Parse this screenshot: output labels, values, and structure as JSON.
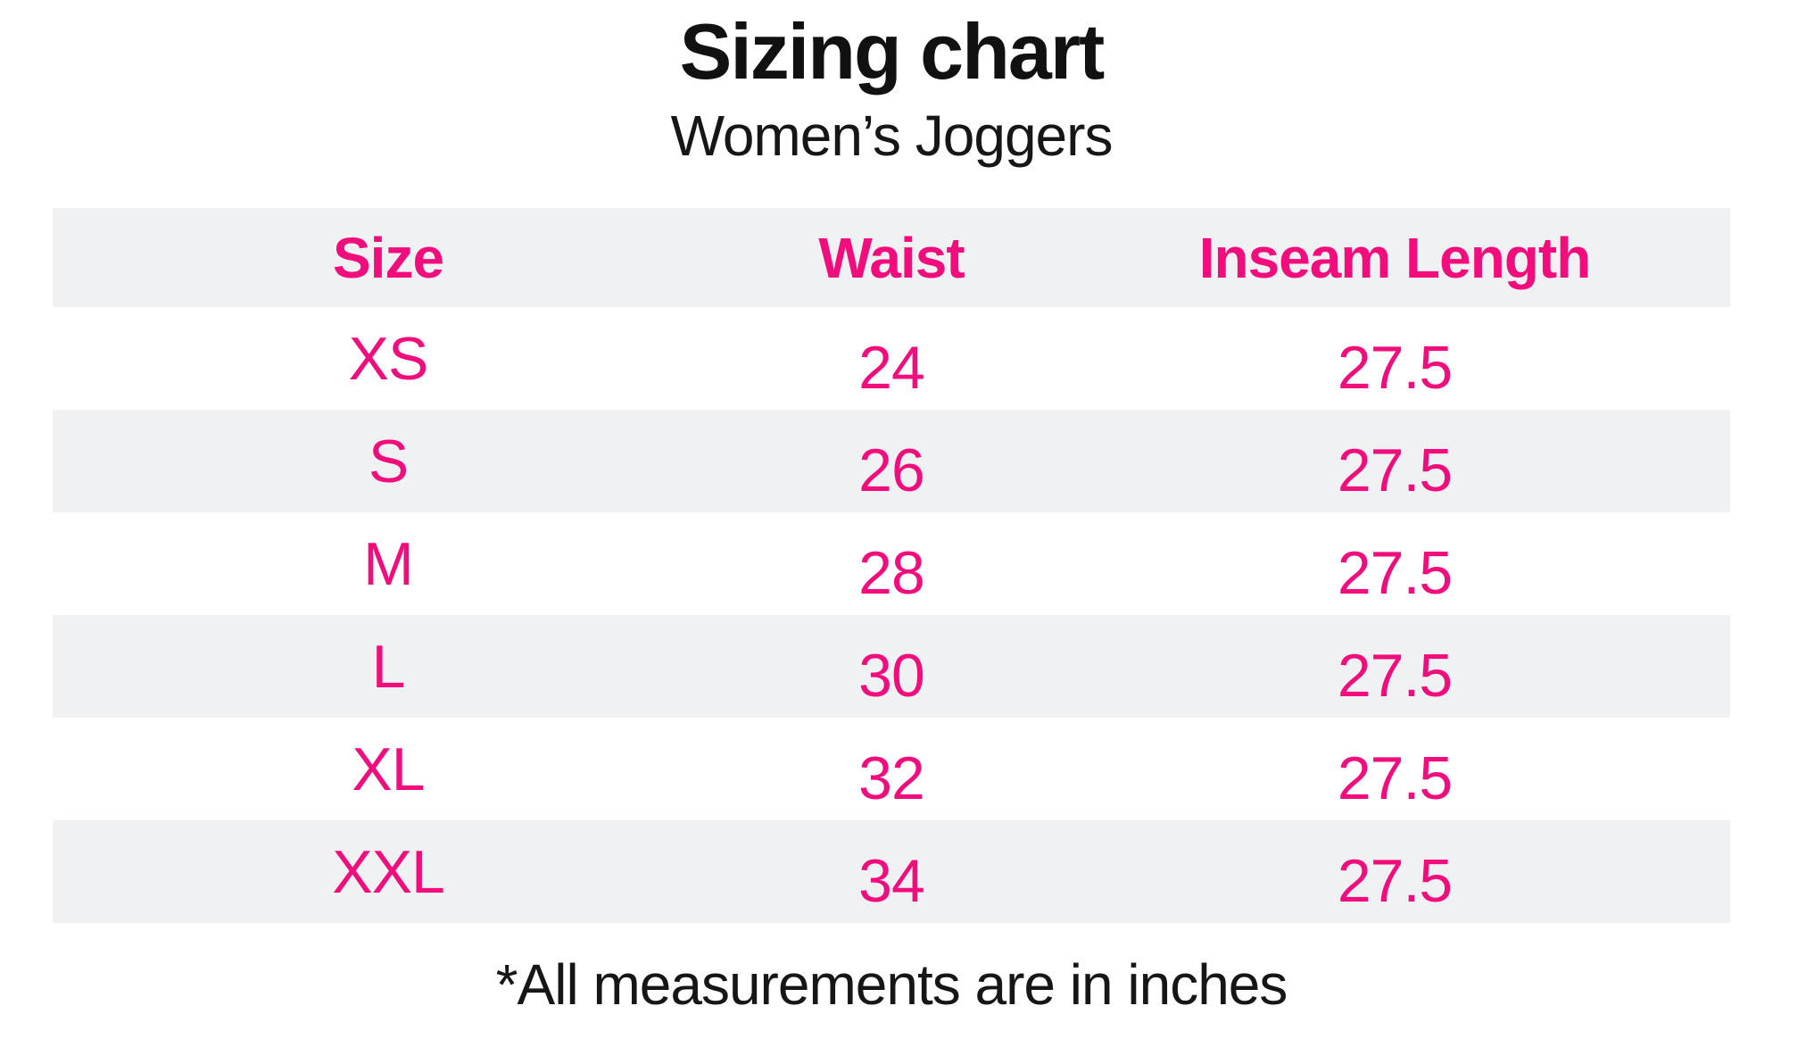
{
  "header": {
    "title": "Sizing chart",
    "subtitle": "Women’s Joggers"
  },
  "footer": {
    "note": "*All measurements are in inches"
  },
  "chart_data": {
    "type": "table",
    "title": "Sizing chart",
    "subtitle": "Women’s Joggers",
    "columns": [
      "Size",
      "Waist",
      "Inseam Length"
    ],
    "rows": [
      [
        "XS",
        "24",
        "27.5"
      ],
      [
        "S",
        "26",
        "27.5"
      ],
      [
        "M",
        "28",
        "27.5"
      ],
      [
        "L",
        "30",
        "27.5"
      ],
      [
        "XL",
        "32",
        "27.5"
      ],
      [
        "XXL",
        "34",
        "27.5"
      ]
    ],
    "units": "inches",
    "footnote": "*All measurements are in inches",
    "layout_hints": {
      "striped_rows": true,
      "header_background": "gray",
      "stripe_pattern": [
        "gray-header",
        "white",
        "gray",
        "white",
        "gray",
        "white",
        "gray"
      ],
      "column_widths_pct": [
        40,
        20,
        40
      ],
      "text_alignment": "center"
    }
  },
  "colors": {
    "accent_pink": "#f20d7d",
    "stripe_gray": "#f0f1f2",
    "text_black": "#161616"
  }
}
